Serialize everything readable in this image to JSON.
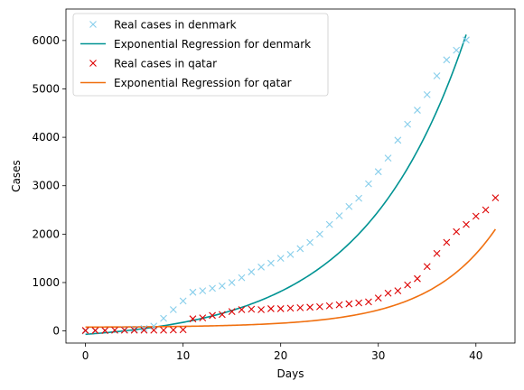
{
  "chart_data": {
    "type": "line",
    "title": "",
    "xlabel": "Days",
    "ylabel": "Cases",
    "xlim": [
      -2,
      44
    ],
    "ylim": [
      -250,
      6650
    ],
    "xticks": [
      0,
      10,
      20,
      30,
      40
    ],
    "yticks": [
      0,
      1000,
      2000,
      3000,
      4000,
      5000,
      6000
    ],
    "grid": false,
    "legend_placement": "top-left",
    "series": [
      {
        "name": "Real cases in denmark",
        "kind": "scatter",
        "marker": "x",
        "color": "#87ceeb",
        "x": [
          0,
          1,
          2,
          3,
          4,
          5,
          6,
          7,
          8,
          9,
          10,
          11,
          12,
          13,
          14,
          15,
          16,
          17,
          18,
          19,
          20,
          21,
          22,
          23,
          24,
          25,
          26,
          27,
          28,
          29,
          30,
          31,
          32,
          33,
          34,
          35,
          36,
          37,
          38,
          39
        ],
        "y": [
          0,
          5,
          10,
          15,
          25,
          35,
          50,
          100,
          260,
          440,
          620,
          800,
          830,
          880,
          930,
          1000,
          1100,
          1220,
          1320,
          1400,
          1500,
          1580,
          1700,
          1830,
          2000,
          2200,
          2380,
          2570,
          2740,
          3040,
          3290,
          3570,
          3940,
          4270,
          4560,
          4880,
          5270,
          5600,
          5800,
          6010
        ]
      },
      {
        "name": "Exponential Regression for denmark",
        "kind": "line",
        "color": "#009393",
        "curve": {
          "a": 155.5,
          "b": 0.0951,
          "c": -225,
          "x_start": 0,
          "x_end": 39
        }
      },
      {
        "name": "Real cases in qatar",
        "kind": "scatter",
        "marker": "x",
        "color": "#dd0000",
        "x": [
          0,
          1,
          2,
          3,
          4,
          5,
          6,
          7,
          8,
          9,
          10,
          11,
          12,
          13,
          14,
          15,
          16,
          17,
          18,
          19,
          20,
          21,
          22,
          23,
          24,
          25,
          26,
          27,
          28,
          29,
          30,
          31,
          32,
          33,
          34,
          35,
          36,
          37,
          38,
          39,
          40,
          41,
          42
        ],
        "y": [
          10,
          10,
          10,
          15,
          15,
          15,
          15,
          15,
          15,
          20,
          25,
          250,
          270,
          320,
          340,
          400,
          440,
          450,
          440,
          460,
          460,
          470,
          480,
          490,
          500,
          520,
          540,
          560,
          580,
          600,
          680,
          780,
          830,
          950,
          1080,
          1330,
          1600,
          1830,
          2050,
          2200,
          2370,
          2500,
          2750
        ]
      },
      {
        "name": "Exponential Regression for qatar",
        "kind": "line",
        "color": "#f07010",
        "curve": {
          "a": 4.69,
          "b": 0.1445,
          "c": 75,
          "x_start": 0,
          "x_end": 42
        }
      }
    ]
  }
}
